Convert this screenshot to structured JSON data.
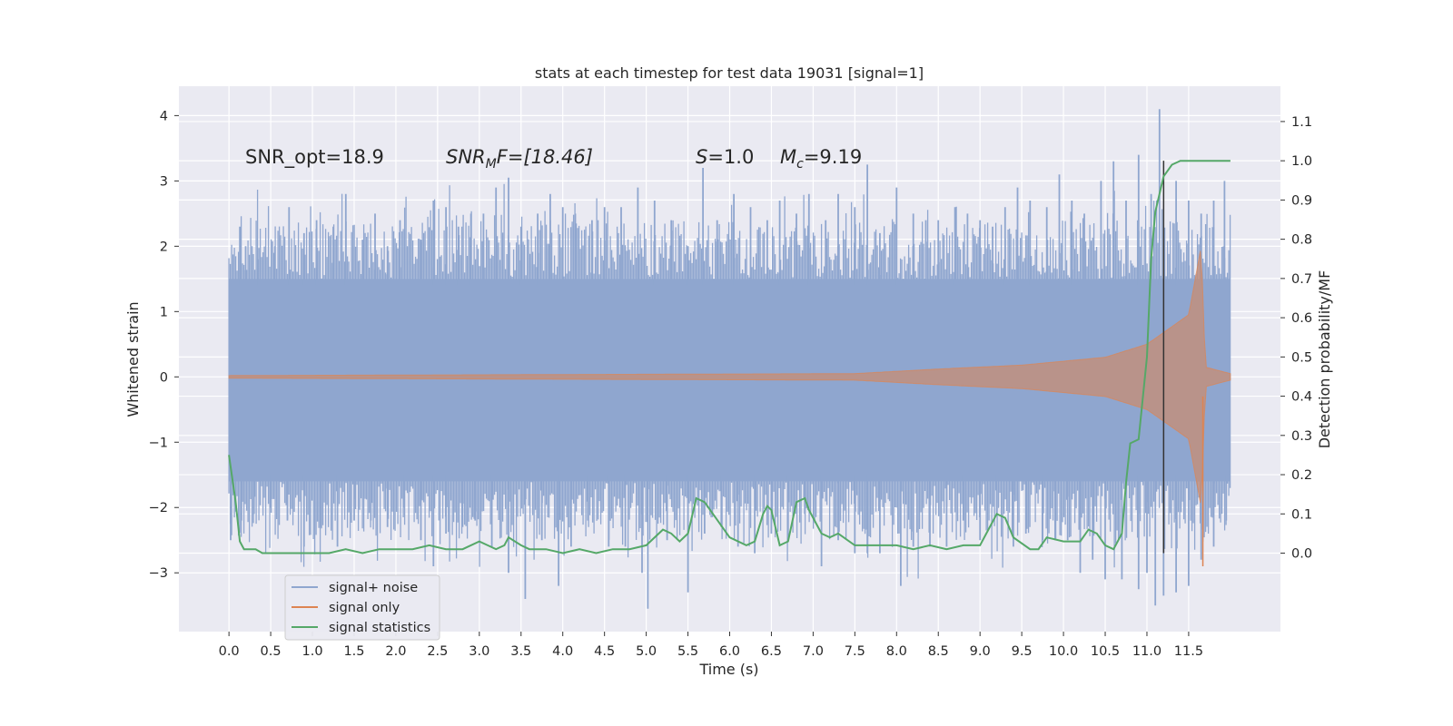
{
  "chart_data": {
    "type": "line",
    "title": "stats at each timestep for test data 19031 [signal=1]",
    "xlabel": "Time (s)",
    "ylabel": "Whitened strain",
    "ylabel_right": "Detection probability/MF",
    "xlim": [
      -0.6,
      12.6
    ],
    "ylim": [
      -3.9,
      4.45
    ],
    "ylim_right": [
      -0.2,
      1.19
    ],
    "x_ticks": [
      "0.0",
      "0.5",
      "1.0",
      "1.5",
      "2.0",
      "2.5",
      "3.0",
      "3.5",
      "4.0",
      "4.5",
      "5.0",
      "5.5",
      "6.0",
      "6.5",
      "7.0",
      "7.5",
      "8.0",
      "8.5",
      "9.0",
      "9.5",
      "10.0",
      "10.5",
      "11.0",
      "11.5"
    ],
    "y_ticks": [
      "−3",
      "−2",
      "−1",
      "0",
      "1",
      "2",
      "3",
      "4"
    ],
    "y_ticks_right": [
      "0.0",
      "0.1",
      "0.2",
      "0.3",
      "0.4",
      "0.5",
      "0.6",
      "0.7",
      "0.8",
      "0.9",
      "1.0",
      "1.1"
    ],
    "grid": true,
    "legend_position": "lower-left",
    "annotations": {
      "snr_opt": "SNR_opt=18.9",
      "snr_mf_base": "SNR",
      "snr_mf_sub": "M",
      "snr_mf_rest": "F=[18.46]",
      "s_symbol": "S",
      "s_rest": "=1.0",
      "mc_symbol": "M",
      "mc_sub": "c",
      "mc_rest": "=9.19"
    },
    "series": [
      {
        "name": "signal+ noise",
        "axis": "left",
        "color": "#8fa6cf",
        "x_range": [
          0.0,
          12.0
        ],
        "envelope_upper_typical": 1.5,
        "envelope_lower_typical": -1.6,
        "peak_max": 4.1,
        "peak_min": -3.55
      },
      {
        "name": "signal only",
        "axis": "left",
        "color": "#dd8452",
        "x_range": [
          0.0,
          12.0
        ],
        "amplitude_envelope": [
          [
            0.0,
            0.02
          ],
          [
            7.5,
            0.05
          ],
          [
            8.5,
            0.12
          ],
          [
            9.5,
            0.18
          ],
          [
            10.5,
            0.3
          ],
          [
            11.0,
            0.5
          ],
          [
            11.5,
            0.95
          ],
          [
            11.65,
            2.0
          ],
          [
            11.7,
            0.15
          ],
          [
            12.0,
            0.05
          ]
        ]
      },
      {
        "name": "signal statistics",
        "axis": "right",
        "color": "#55a868",
        "x": [
          0.0,
          0.08,
          0.13,
          0.18,
          0.25,
          0.32,
          0.4,
          0.5,
          0.6,
          0.8,
          1.0,
          1.2,
          1.4,
          1.6,
          1.8,
          2.0,
          2.2,
          2.4,
          2.6,
          2.8,
          3.0,
          3.1,
          3.2,
          3.3,
          3.35,
          3.5,
          3.6,
          3.8,
          4.0,
          4.2,
          4.4,
          4.6,
          4.8,
          5.0,
          5.2,
          5.3,
          5.4,
          5.5,
          5.6,
          5.7,
          5.8,
          5.9,
          6.0,
          6.2,
          6.3,
          6.4,
          6.45,
          6.5,
          6.6,
          6.7,
          6.8,
          6.9,
          6.95,
          7.0,
          7.1,
          7.2,
          7.3,
          7.5,
          7.8,
          8.0,
          8.2,
          8.4,
          8.6,
          8.8,
          9.0,
          9.1,
          9.2,
          9.3,
          9.4,
          9.6,
          9.7,
          9.8,
          10.0,
          10.2,
          10.3,
          10.4,
          10.5,
          10.6,
          10.7,
          10.75,
          10.8,
          10.9,
          11.0,
          11.05,
          11.1,
          11.2,
          11.3,
          11.4,
          11.45,
          11.5,
          11.6,
          11.7,
          11.8,
          11.9,
          12.0
        ],
        "y": [
          0.25,
          0.13,
          0.03,
          0.01,
          0.01,
          0.01,
          0.0,
          0.0,
          0.0,
          0.0,
          0.0,
          0.0,
          0.01,
          0.0,
          0.01,
          0.01,
          0.01,
          0.02,
          0.01,
          0.01,
          0.03,
          0.02,
          0.01,
          0.02,
          0.04,
          0.02,
          0.01,
          0.01,
          0.0,
          0.01,
          0.0,
          0.01,
          0.01,
          0.02,
          0.06,
          0.05,
          0.03,
          0.05,
          0.14,
          0.13,
          0.1,
          0.07,
          0.04,
          0.02,
          0.03,
          0.1,
          0.12,
          0.11,
          0.02,
          0.03,
          0.13,
          0.14,
          0.11,
          0.09,
          0.05,
          0.04,
          0.05,
          0.02,
          0.02,
          0.02,
          0.01,
          0.02,
          0.01,
          0.02,
          0.02,
          0.06,
          0.1,
          0.09,
          0.04,
          0.01,
          0.01,
          0.04,
          0.03,
          0.03,
          0.06,
          0.05,
          0.02,
          0.01,
          0.05,
          0.18,
          0.28,
          0.29,
          0.5,
          0.75,
          0.87,
          0.96,
          0.99,
          1.0,
          1.0,
          1.0,
          1.0,
          1.0,
          1.0,
          1.0,
          1.0
        ]
      }
    ],
    "vertical_marker": {
      "x": 11.2,
      "color": "#333333"
    },
    "noise_spikes_up": [
      [
        0.05,
        1.0
      ],
      [
        0.13,
        2.3
      ],
      [
        0.2,
        2.0
      ],
      [
        0.35,
        1.8
      ],
      [
        0.55,
        2.0
      ],
      [
        0.72,
        2.6
      ],
      [
        0.9,
        2.2
      ],
      [
        1.05,
        2.4
      ],
      [
        1.25,
        2.3
      ],
      [
        1.4,
        2.8
      ],
      [
        1.6,
        2.1
      ],
      [
        1.75,
        2.5
      ],
      [
        1.9,
        2.0
      ],
      [
        2.05,
        2.4
      ],
      [
        2.3,
        2.1
      ],
      [
        2.45,
        2.7
      ],
      [
        2.6,
        2.6
      ],
      [
        2.75,
        2.3
      ],
      [
        2.9,
        2.5
      ],
      [
        3.05,
        2.5
      ],
      [
        3.2,
        2.9
      ],
      [
        3.35,
        3.05
      ],
      [
        3.5,
        2.3
      ],
      [
        3.7,
        2.5
      ],
      [
        3.85,
        2.8
      ],
      [
        4.0,
        2.6
      ],
      [
        4.15,
        2.5
      ],
      [
        4.35,
        2.4
      ],
      [
        4.5,
        2.6
      ],
      [
        4.7,
        2.6
      ],
      [
        4.9,
        2.9
      ],
      [
        5.1,
        2.7
      ],
      [
        5.3,
        2.4
      ],
      [
        5.5,
        2.0
      ],
      [
        5.68,
        3.2
      ],
      [
        5.85,
        2.4
      ],
      [
        6.05,
        2.8
      ],
      [
        6.25,
        2.6
      ],
      [
        6.45,
        2.4
      ],
      [
        6.6,
        2.7
      ],
      [
        6.8,
        2.5
      ],
      [
        6.95,
        2.8
      ],
      [
        7.15,
        2.4
      ],
      [
        7.3,
        2.8
      ],
      [
        7.5,
        2.6
      ],
      [
        7.65,
        3.25
      ],
      [
        7.8,
        2.2
      ],
      [
        8.0,
        2.9
      ],
      [
        8.2,
        2.5
      ],
      [
        8.35,
        2.4
      ],
      [
        8.5,
        2.4
      ],
      [
        8.7,
        2.6
      ],
      [
        8.85,
        2.5
      ],
      [
        9.0,
        2.4
      ],
      [
        9.15,
        2.3
      ],
      [
        9.3,
        2.6
      ],
      [
        9.45,
        2.9
      ],
      [
        9.6,
        2.7
      ],
      [
        9.8,
        2.6
      ],
      [
        9.95,
        3.1
      ],
      [
        10.1,
        2.7
      ],
      [
        10.25,
        2.5
      ],
      [
        10.45,
        3.0
      ],
      [
        10.6,
        3.3
      ],
      [
        10.75,
        2.7
      ],
      [
        10.9,
        3.4
      ],
      [
        11.05,
        2.8
      ],
      [
        11.15,
        4.1
      ],
      [
        11.35,
        3.0
      ],
      [
        11.5,
        2.7
      ],
      [
        11.65,
        2.5
      ],
      [
        11.8,
        2.7
      ],
      [
        11.93,
        3.0
      ]
    ],
    "noise_spikes_down": [
      [
        0.02,
        -2.5
      ],
      [
        0.15,
        -2.2
      ],
      [
        0.3,
        -2.1
      ],
      [
        0.5,
        -2.0
      ],
      [
        0.7,
        -2.2
      ],
      [
        0.9,
        -2.6
      ],
      [
        1.1,
        -2.3
      ],
      [
        1.3,
        -2.6
      ],
      [
        1.5,
        -2.2
      ],
      [
        1.7,
        -2.2
      ],
      [
        1.9,
        -2.3
      ],
      [
        2.1,
        -2.0
      ],
      [
        2.3,
        -2.5
      ],
      [
        2.45,
        -2.9
      ],
      [
        2.6,
        -2.4
      ],
      [
        2.8,
        -2.3
      ],
      [
        2.95,
        -2.2
      ],
      [
        3.15,
        -2.6
      ],
      [
        3.35,
        -3.0
      ],
      [
        3.55,
        -3.4
      ],
      [
        3.75,
        -2.5
      ],
      [
        3.95,
        -3.2
      ],
      [
        4.1,
        -2.6
      ],
      [
        4.3,
        -2.2
      ],
      [
        4.55,
        -2.6
      ],
      [
        4.75,
        -2.6
      ],
      [
        4.95,
        -3.0
      ],
      [
        5.02,
        -3.55
      ],
      [
        5.25,
        -2.5
      ],
      [
        5.5,
        -3.3
      ],
      [
        5.7,
        -2.4
      ],
      [
        5.9,
        -2.3
      ],
      [
        6.1,
        -2.6
      ],
      [
        6.3,
        -2.7
      ],
      [
        6.5,
        -2.4
      ],
      [
        6.7,
        -2.5
      ],
      [
        6.9,
        -2.1
      ],
      [
        7.1,
        -2.9
      ],
      [
        7.3,
        -2.5
      ],
      [
        7.5,
        -2.7
      ],
      [
        7.65,
        -2.7
      ],
      [
        7.8,
        -2.7
      ],
      [
        8.05,
        -3.2
      ],
      [
        8.2,
        -2.6
      ],
      [
        8.4,
        -2.6
      ],
      [
        8.6,
        -2.6
      ],
      [
        8.8,
        -2.2
      ],
      [
        9.0,
        -2.5
      ],
      [
        9.2,
        -2.1
      ],
      [
        9.4,
        -2.6
      ],
      [
        9.55,
        -2.4
      ],
      [
        9.75,
        -2.5
      ],
      [
        9.9,
        -2.5
      ],
      [
        10.05,
        -2.5
      ],
      [
        10.2,
        -3.0
      ],
      [
        10.35,
        -2.8
      ],
      [
        10.5,
        -3.1
      ],
      [
        10.7,
        -3.1
      ],
      [
        10.9,
        -3.25
      ],
      [
        11.0,
        -3.0
      ],
      [
        11.1,
        -3.5
      ],
      [
        11.2,
        -3.35
      ],
      [
        11.35,
        -3.3
      ],
      [
        11.5,
        -3.2
      ],
      [
        11.65,
        -2.8
      ],
      [
        11.8,
        -2.6
      ],
      [
        11.95,
        -2.2
      ]
    ]
  }
}
